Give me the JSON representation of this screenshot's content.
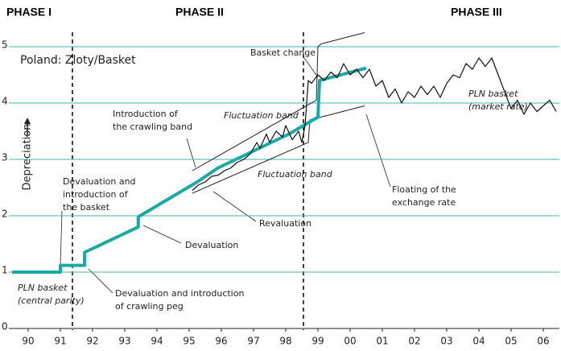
{
  "chart_data": {
    "type": "line",
    "title": "Poland: Zloty/Basket",
    "ylabel": "Depreciation",
    "phases": [
      "PHASE I",
      "PHASE II",
      "PHASE III"
    ],
    "xlim": [
      1989.9,
      2007.0
    ],
    "xticks": [
      {
        "value": 1990.5,
        "label": "90"
      },
      {
        "value": 1991.5,
        "label": "91"
      },
      {
        "value": 1992.5,
        "label": "92"
      },
      {
        "value": 1993.5,
        "label": "93"
      },
      {
        "value": 1994.5,
        "label": "94"
      },
      {
        "value": 1995.5,
        "label": "95"
      },
      {
        "value": 1996.5,
        "label": "96"
      },
      {
        "value": 1997.5,
        "label": "97"
      },
      {
        "value": 1998.5,
        "label": "98"
      },
      {
        "value": 1999.5,
        "label": "99"
      },
      {
        "value": 2000.5,
        "label": "00"
      },
      {
        "value": 2001.5,
        "label": "01"
      },
      {
        "value": 2002.5,
        "label": "02"
      },
      {
        "value": 2003.5,
        "label": "03"
      },
      {
        "value": 2004.5,
        "label": "04"
      },
      {
        "value": 2005.5,
        "label": "05"
      },
      {
        "value": 2006.5,
        "label": "06"
      }
    ],
    "ylim": [
      0,
      5.3
    ],
    "yticks": [
      0,
      1,
      2,
      3,
      4,
      5
    ],
    "grid": true,
    "grid_color": "#3fb4b0",
    "series": [
      {
        "color": "#222222",
        "width": 1,
        "x": [
          1995.6,
          1999.45,
          1999.5,
          1999.6,
          2000.95
        ],
        "values": [
          2.8,
          4.05,
          5.0,
          5.05,
          5.25
        ]
      },
      {
        "color": "#222222",
        "width": 1,
        "x": [
          1995.6,
          1999.2,
          1999.25,
          2000.95
        ],
        "values": [
          2.4,
          3.3,
          3.7,
          3.95
        ]
      },
      {
        "color": "#1aa9a3",
        "width": 4,
        "x": [
          1990.0,
          1991.5,
          1991.5,
          1992.25,
          1992.25,
          1993.92,
          1993.92,
          1995.75,
          1996.4,
          1997.5,
          1998.6,
          1999.2,
          1999.5,
          1999.55,
          2001.0
        ],
        "values": [
          1.0,
          1.0,
          1.12,
          1.12,
          1.35,
          1.8,
          1.98,
          2.6,
          2.85,
          3.15,
          3.45,
          3.65,
          3.75,
          4.4,
          4.62
        ]
      },
      {
        "color": "#111111",
        "width": 1.2,
        "x": [
          1995.6,
          1995.8,
          1996.0,
          1996.2,
          1996.4,
          1996.6,
          1996.8,
          1997.0,
          1997.2,
          1997.4,
          1997.6,
          1997.7,
          1997.9,
          1998.0,
          1998.2,
          1998.4,
          1998.5,
          1998.7,
          1998.9,
          1999.0,
          1999.1,
          1999.2,
          1999.3,
          1999.5,
          1999.7,
          1999.9,
          2000.1,
          2000.3,
          2000.5,
          2000.7,
          2000.9,
          2001.1,
          2001.3,
          2001.5,
          2001.7,
          2001.9,
          2002.1,
          2002.3,
          2002.5,
          2002.7,
          2002.9,
          2003.1,
          2003.3,
          2003.5,
          2003.7,
          2003.9,
          2004.1,
          2004.3,
          2004.5,
          2004.7,
          2004.9,
          2005.1,
          2005.3,
          2005.5,
          2005.7,
          2005.9,
          2006.1,
          2006.3,
          2006.5,
          2006.7,
          2006.9
        ],
        "values": [
          2.45,
          2.55,
          2.6,
          2.7,
          2.72,
          2.8,
          2.85,
          2.95,
          3.0,
          3.1,
          3.3,
          3.2,
          3.45,
          3.3,
          3.5,
          3.4,
          3.6,
          3.35,
          3.5,
          3.3,
          3.6,
          4.4,
          4.35,
          4.5,
          4.4,
          4.55,
          4.45,
          4.7,
          4.5,
          4.6,
          4.45,
          4.6,
          4.3,
          4.4,
          4.1,
          4.25,
          4.0,
          4.2,
          4.1,
          4.3,
          4.15,
          4.3,
          4.1,
          4.35,
          4.5,
          4.45,
          4.7,
          4.6,
          4.8,
          4.65,
          4.8,
          4.5,
          4.2,
          3.9,
          4.05,
          3.8,
          4.0,
          3.85,
          3.95,
          4.05,
          3.85
        ]
      }
    ],
    "annotations": [
      {
        "lines": [
          "Basket change"
        ],
        "italic": false
      },
      {
        "lines": [
          "Introduction of",
          "the crawling band"
        ],
        "italic": false
      },
      {
        "lines": [
          "Fluctuation band"
        ],
        "italic": true
      },
      {
        "lines": [
          "Fluctuation band"
        ],
        "italic": true
      },
      {
        "lines": [
          "Devaluation and",
          "introduction of",
          "the basket"
        ],
        "italic": false
      },
      {
        "lines": [
          "Devaluation"
        ],
        "italic": false
      },
      {
        "lines": [
          "Revaluation"
        ],
        "italic": false
      },
      {
        "lines": [
          "Floating of the",
          "exchange rate"
        ],
        "italic": false
      },
      {
        "lines": [
          "PLN basket",
          "(market rate)"
        ],
        "italic": true
      },
      {
        "lines": [
          "PLN basket",
          "(central parity)"
        ],
        "italic": true
      },
      {
        "lines": [
          "Devaluation and introduction",
          "of crawling peg"
        ],
        "italic": false
      }
    ]
  }
}
